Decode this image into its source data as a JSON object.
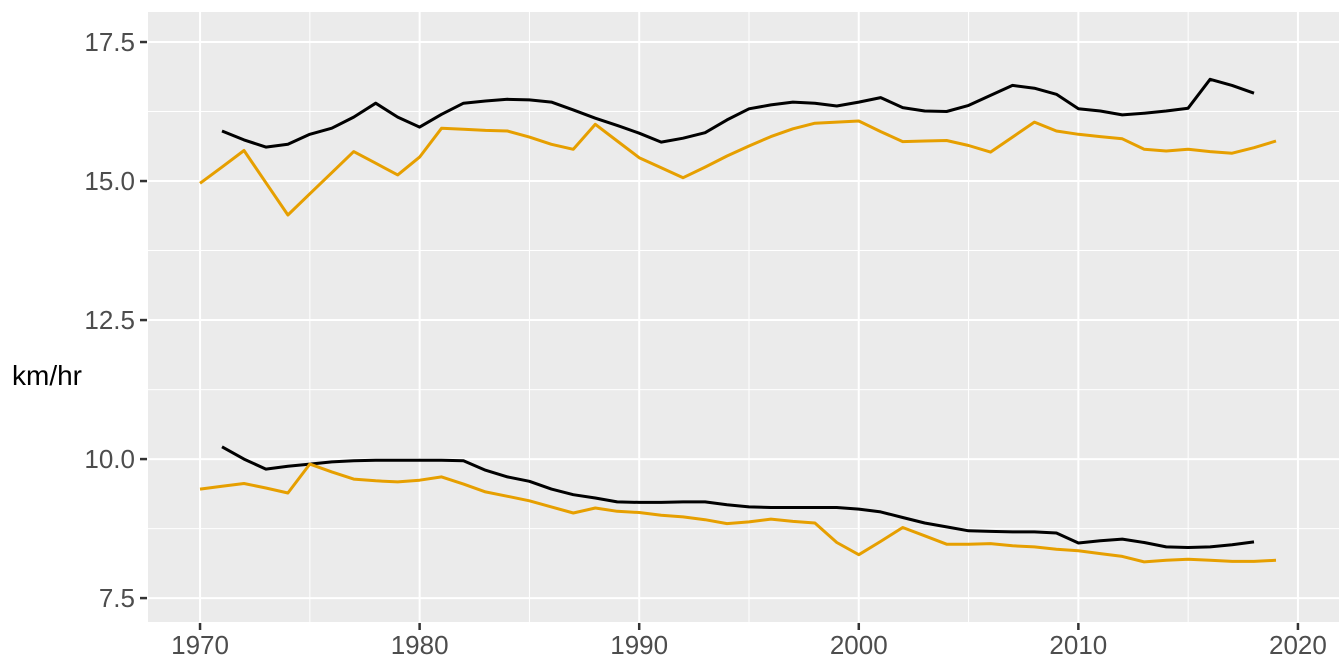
{
  "chart_data": {
    "type": "line",
    "title": "",
    "xlabel": "",
    "ylabel": "km/hr",
    "legend": "none",
    "grid": "white major and minor gridlines on grey panel",
    "x_range": [
      1967.63,
      2021.87
    ],
    "y_range": [
      7.07,
      18.04
    ],
    "x_ticks": {
      "labels": [
        "1970",
        "1980",
        "1990",
        "2000",
        "2010",
        "2020"
      ],
      "values": [
        1970,
        1980,
        1990,
        2000,
        2010,
        2020
      ]
    },
    "y_ticks": {
      "labels": [
        "7.5",
        "10.0",
        "12.5",
        "15.0",
        "17.5"
      ],
      "values": [
        7.5,
        10.0,
        12.5,
        15.0,
        17.5
      ]
    },
    "x_minor_ticks": [
      1975,
      1985,
      1995,
      2005,
      2015
    ],
    "y_minor_ticks": [
      8.75,
      11.25,
      13.75,
      16.25
    ],
    "series": [
      {
        "name": "black-upper",
        "color": "#000000",
        "start_year": 1971,
        "values": [
          15.9,
          15.74,
          15.61,
          15.66,
          15.84,
          15.95,
          16.15,
          16.4,
          16.15,
          15.97,
          16.2,
          16.4,
          16.44,
          16.47,
          16.46,
          16.42,
          16.28,
          16.13,
          16.0,
          15.86,
          15.7,
          15.77,
          15.87,
          16.1,
          16.3,
          16.37,
          16.42,
          16.4,
          16.35,
          16.42,
          16.5,
          16.32,
          16.26,
          16.25,
          16.36,
          16.54,
          16.72,
          16.67,
          16.56,
          16.3,
          16.26,
          16.19,
          16.22,
          16.26,
          16.31,
          16.83,
          16.72,
          16.58
        ]
      },
      {
        "name": "orange-upper",
        "color": "#E69F00",
        "start_year": 1970,
        "values": [
          14.96,
          15.25,
          15.55,
          14.97,
          14.39,
          14.77,
          15.15,
          15.53,
          15.32,
          15.11,
          15.43,
          15.95,
          15.93,
          15.91,
          15.9,
          15.79,
          15.66,
          15.57,
          16.02,
          15.72,
          15.42,
          15.24,
          15.06,
          15.25,
          15.45,
          15.63,
          15.8,
          15.94,
          16.04,
          16.06,
          16.08,
          15.89,
          15.71,
          15.72,
          15.73,
          15.64,
          15.52,
          15.79,
          16.06,
          15.9,
          15.84,
          15.8,
          15.76,
          15.57,
          15.54,
          15.57,
          15.53,
          15.5,
          15.6,
          15.72
        ]
      },
      {
        "name": "black-lower",
        "color": "#000000",
        "start_year": 1971,
        "values": [
          10.22,
          10.0,
          9.82,
          9.87,
          9.91,
          9.95,
          9.97,
          9.98,
          9.98,
          9.98,
          9.98,
          9.97,
          9.8,
          9.68,
          9.6,
          9.46,
          9.36,
          9.3,
          9.23,
          9.22,
          9.22,
          9.23,
          9.23,
          9.18,
          9.14,
          9.13,
          9.13,
          9.13,
          9.13,
          9.1,
          9.05,
          8.95,
          8.85,
          8.78,
          8.71,
          8.7,
          8.69,
          8.69,
          8.67,
          8.49,
          8.53,
          8.56,
          8.5,
          8.42,
          8.41,
          8.42,
          8.46,
          8.51
        ]
      },
      {
        "name": "orange-lower",
        "color": "#E69F00",
        "start_year": 1970,
        "values": [
          9.46,
          9.51,
          9.56,
          9.48,
          9.39,
          9.91,
          9.77,
          9.64,
          9.61,
          9.59,
          9.62,
          9.68,
          9.55,
          9.41,
          9.33,
          9.25,
          9.14,
          9.03,
          9.12,
          9.06,
          9.04,
          8.99,
          8.96,
          8.91,
          8.84,
          8.87,
          8.92,
          8.88,
          8.85,
          8.5,
          8.28,
          8.52,
          8.77,
          8.62,
          8.47,
          8.47,
          8.48,
          8.44,
          8.42,
          8.38,
          8.35,
          8.3,
          8.25,
          8.15,
          8.18,
          8.2,
          8.18,
          8.16,
          8.16,
          8.18
        ]
      }
    ]
  },
  "style": {
    "panel_bg": "#EBEBEB",
    "grid_color": "#FFFFFF",
    "tick_mark_color": "#333333",
    "axis_text_color": "#4D4D4D",
    "line_black": "#000000",
    "line_orange": "#E69F00"
  }
}
